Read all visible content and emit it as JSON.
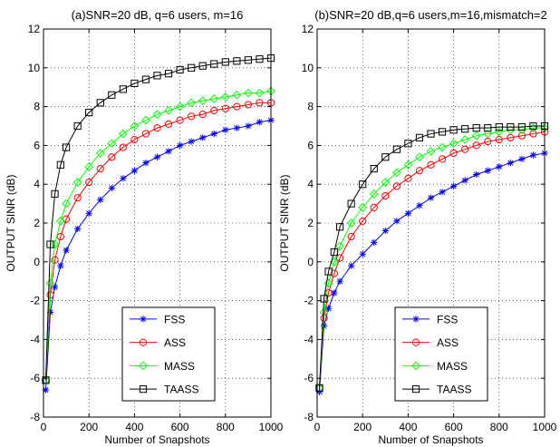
{
  "chart_data": [
    {
      "type": "line",
      "title": "(a)SNR=20 dB, q=6 users, m=16",
      "xlabel": "Number of Snapshots",
      "ylabel": "OUTPUT SINR (dB)",
      "xlim": [
        0,
        1000
      ],
      "ylim": [
        -8,
        12
      ],
      "xticks": [
        0,
        200,
        400,
        600,
        800,
        1000
      ],
      "yticks": [
        -8,
        -6,
        -4,
        -2,
        0,
        2,
        4,
        6,
        8,
        10,
        12
      ],
      "grid": true,
      "legend_position": "lower-center",
      "series": [
        {
          "name": "FSS",
          "color": "#0000ff",
          "marker": "star",
          "x": [
            10,
            30,
            50,
            75,
            100,
            150,
            200,
            250,
            300,
            350,
            400,
            450,
            500,
            550,
            600,
            650,
            700,
            750,
            800,
            850,
            900,
            950,
            1000
          ],
          "y": [
            -6.6,
            -2.6,
            -1.3,
            -0.2,
            0.6,
            1.7,
            2.5,
            3.2,
            3.8,
            4.3,
            4.7,
            5.1,
            5.4,
            5.7,
            6.0,
            6.2,
            6.4,
            6.6,
            6.8,
            6.9,
            7.0,
            7.2,
            7.3
          ]
        },
        {
          "name": "ASS",
          "color": "#ff0000",
          "marker": "circle",
          "x": [
            10,
            30,
            50,
            75,
            100,
            150,
            200,
            250,
            300,
            350,
            400,
            450,
            500,
            550,
            600,
            650,
            700,
            750,
            800,
            850,
            900,
            950,
            1000
          ],
          "y": [
            -6.1,
            -1.7,
            0.1,
            1.3,
            2.2,
            3.3,
            4.1,
            4.8,
            5.4,
            5.9,
            6.3,
            6.6,
            6.9,
            7.1,
            7.3,
            7.5,
            7.6,
            7.8,
            7.9,
            8.0,
            8.1,
            8.2,
            8.2
          ]
        },
        {
          "name": "MASS",
          "color": "#00ff00",
          "marker": "diamond",
          "x": [
            10,
            30,
            50,
            75,
            100,
            150,
            200,
            250,
            300,
            350,
            400,
            450,
            500,
            550,
            600,
            650,
            700,
            750,
            800,
            850,
            900,
            950,
            1000
          ],
          "y": [
            -6.1,
            -1.1,
            0.9,
            2.1,
            3.0,
            4.1,
            4.9,
            5.6,
            6.1,
            6.6,
            7.0,
            7.3,
            7.6,
            7.8,
            8.0,
            8.2,
            8.3,
            8.4,
            8.5,
            8.6,
            8.7,
            8.7,
            8.8
          ]
        },
        {
          "name": "TAASS",
          "color": "#000000",
          "marker": "square",
          "x": [
            10,
            30,
            50,
            75,
            100,
            150,
            200,
            250,
            300,
            350,
            400,
            450,
            500,
            550,
            600,
            650,
            700,
            750,
            800,
            850,
            900,
            950,
            1000
          ],
          "y": [
            -6.1,
            0.9,
            3.5,
            5.0,
            5.9,
            7.0,
            7.7,
            8.2,
            8.6,
            8.9,
            9.2,
            9.4,
            9.6,
            9.7,
            9.9,
            10.0,
            10.1,
            10.2,
            10.3,
            10.35,
            10.4,
            10.45,
            10.5
          ]
        }
      ]
    },
    {
      "type": "line",
      "title": "(b)SNR=20 dB,q=6 users,m=16,mismatch=2",
      "xlabel": "Number of Snapshots",
      "ylabel": "OUTPUT SINR (dB)",
      "xlim": [
        0,
        1000
      ],
      "ylim": [
        -8,
        12
      ],
      "xticks": [
        0,
        200,
        400,
        600,
        800,
        1000
      ],
      "yticks": [
        -8,
        -6,
        -4,
        -2,
        0,
        2,
        4,
        6,
        8,
        10,
        12
      ],
      "grid": true,
      "legend_position": "lower-center",
      "series": [
        {
          "name": "FSS",
          "color": "#0000ff",
          "marker": "star",
          "x": [
            10,
            30,
            50,
            75,
            100,
            150,
            200,
            250,
            300,
            350,
            400,
            450,
            500,
            550,
            600,
            650,
            700,
            750,
            800,
            850,
            900,
            950,
            1000
          ],
          "y": [
            -6.7,
            -3.3,
            -2.4,
            -1.6,
            -1.0,
            -0.2,
            0.4,
            1.0,
            1.6,
            2.1,
            2.5,
            2.9,
            3.3,
            3.6,
            3.9,
            4.2,
            4.5,
            4.7,
            4.9,
            5.1,
            5.3,
            5.5,
            5.6
          ]
        },
        {
          "name": "ASS",
          "color": "#ff0000",
          "marker": "circle",
          "x": [
            10,
            30,
            50,
            75,
            100,
            150,
            200,
            250,
            300,
            350,
            400,
            450,
            500,
            550,
            600,
            650,
            700,
            750,
            800,
            850,
            900,
            950,
            1000
          ],
          "y": [
            -6.5,
            -2.9,
            -1.6,
            -0.6,
            0.2,
            1.3,
            2.1,
            2.8,
            3.4,
            3.9,
            4.3,
            4.7,
            5.0,
            5.3,
            5.6,
            5.8,
            6.0,
            6.2,
            6.3,
            6.4,
            6.5,
            6.6,
            6.7
          ]
        },
        {
          "name": "MASS",
          "color": "#00ff00",
          "marker": "diamond",
          "x": [
            10,
            30,
            50,
            75,
            100,
            150,
            200,
            250,
            300,
            350,
            400,
            450,
            500,
            550,
            600,
            650,
            700,
            750,
            800,
            850,
            900,
            950,
            1000
          ],
          "y": [
            -6.5,
            -2.6,
            -1.1,
            0.0,
            0.8,
            2.0,
            2.8,
            3.5,
            4.1,
            4.6,
            5.0,
            5.4,
            5.7,
            5.9,
            6.1,
            6.3,
            6.5,
            6.6,
            6.7,
            6.8,
            6.8,
            6.9,
            6.9
          ]
        },
        {
          "name": "TAASS",
          "color": "#000000",
          "marker": "square",
          "x": [
            10,
            30,
            50,
            75,
            100,
            150,
            200,
            250,
            300,
            350,
            400,
            450,
            500,
            550,
            600,
            650,
            700,
            750,
            800,
            850,
            900,
            950,
            1000
          ],
          "y": [
            -6.5,
            -1.9,
            -0.5,
            0.5,
            1.8,
            3.0,
            4.0,
            4.8,
            5.4,
            5.8,
            6.1,
            6.4,
            6.6,
            6.7,
            6.8,
            6.85,
            6.9,
            6.9,
            6.95,
            6.95,
            6.95,
            7.0,
            7.0
          ]
        }
      ]
    }
  ]
}
